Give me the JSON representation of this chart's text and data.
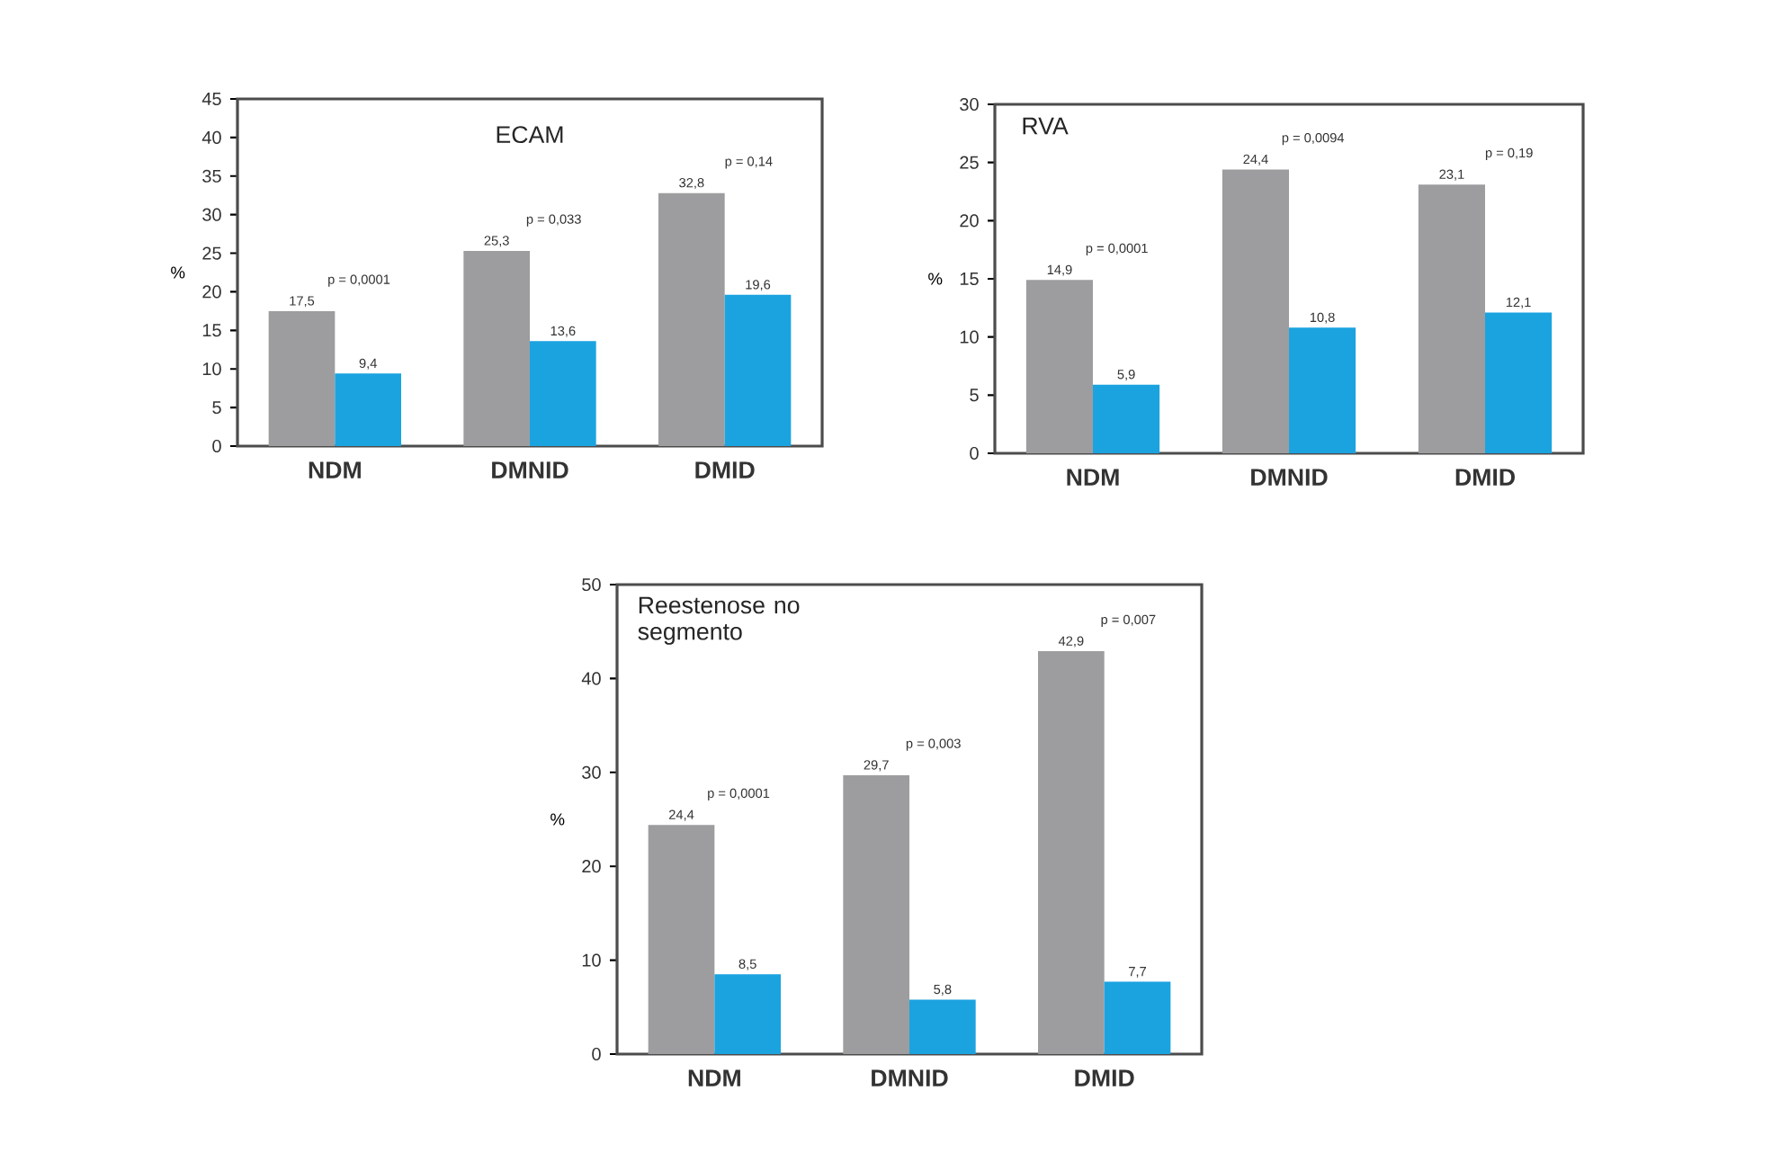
{
  "chart_data": [
    {
      "type": "bar",
      "title": "ECAM",
      "ylabel": "%",
      "categories": [
        "NDM",
        "DMNID",
        "DMID"
      ],
      "ylim": [
        0,
        45
      ],
      "yticks": [
        0,
        5,
        10,
        15,
        20,
        25,
        30,
        35,
        40,
        45
      ],
      "series": [
        {
          "color": "#9d9d9f",
          "values": [
            17.5,
            25.3,
            32.8
          ],
          "value_labels": [
            "17,5",
            "25,3",
            "32,8"
          ]
        },
        {
          "color": "#1ba3e0",
          "values": [
            9.4,
            13.6,
            19.6
          ],
          "value_labels": [
            "9,4",
            "13,6",
            "19,6"
          ]
        }
      ],
      "annotations": [
        "p = 0,0001",
        "p = 0,033",
        "p = 0,14"
      ]
    },
    {
      "type": "bar",
      "title": "RVA",
      "ylabel": "%",
      "categories": [
        "NDM",
        "DMNID",
        "DMID"
      ],
      "ylim": [
        0,
        30
      ],
      "yticks": [
        0,
        5,
        10,
        15,
        20,
        25,
        30
      ],
      "series": [
        {
          "color": "#9d9d9f",
          "values": [
            14.9,
            24.4,
            23.1
          ],
          "value_labels": [
            "14,9",
            "24,4",
            "23,1"
          ]
        },
        {
          "color": "#1ba3e0",
          "values": [
            5.9,
            10.8,
            12.1
          ],
          "value_labels": [
            "5,9",
            "10,8",
            "12,1"
          ]
        }
      ],
      "annotations": [
        "p = 0,0001",
        "p = 0,0094",
        "p = 0,19"
      ]
    },
    {
      "type": "bar",
      "title": "Reestenose no segmento",
      "ylabel": "%",
      "categories": [
        "NDM",
        "DMNID",
        "DMID"
      ],
      "ylim": [
        0,
        50
      ],
      "yticks": [
        0,
        10,
        20,
        30,
        40,
        50
      ],
      "series": [
        {
          "color": "#9d9d9f",
          "values": [
            24.4,
            29.7,
            42.9
          ],
          "value_labels": [
            "24,4",
            "29,7",
            "42,9"
          ]
        },
        {
          "color": "#1ba3e0",
          "values": [
            8.5,
            5.8,
            7.7
          ],
          "value_labels": [
            "8,5",
            "5,8",
            "7,7"
          ]
        }
      ],
      "annotations": [
        "p = 0,0001",
        "p = 0,003",
        "p = 0,007"
      ]
    }
  ]
}
